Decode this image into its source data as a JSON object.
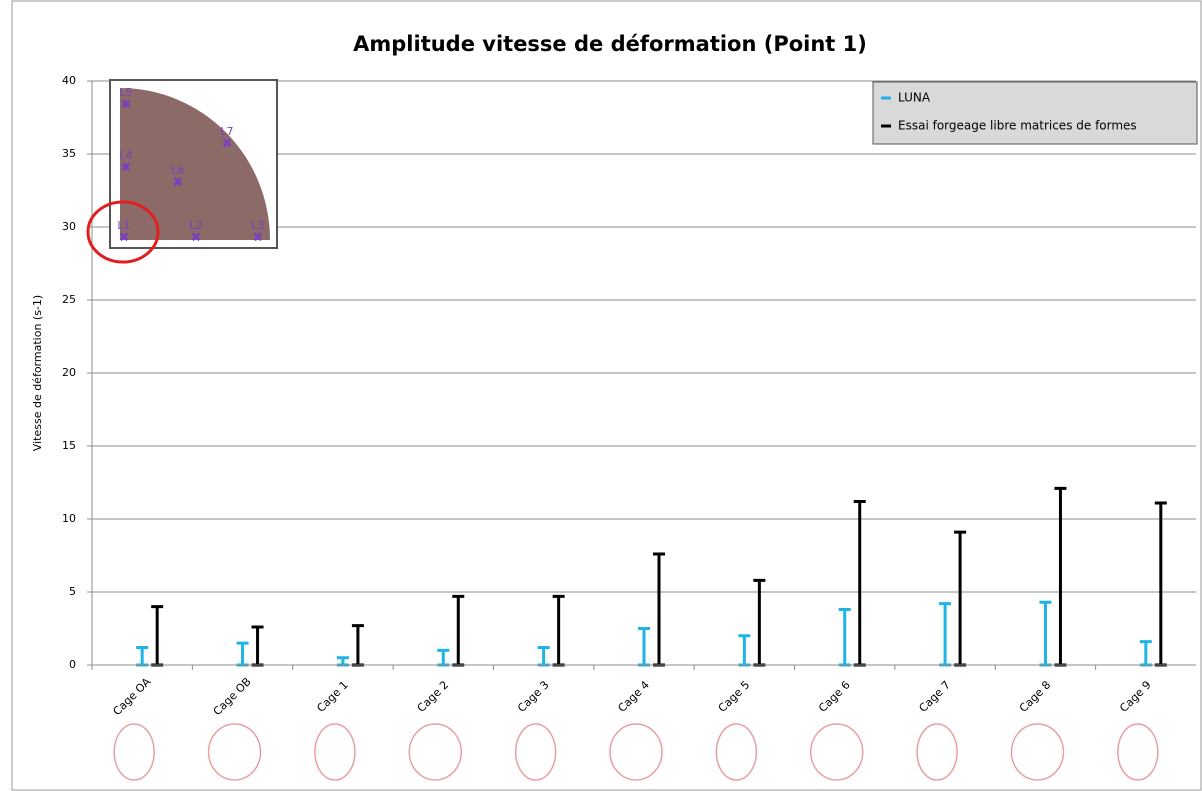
{
  "chart_data": {
    "type": "range-bar",
    "title": "Amplitude  vitesse de déformation (Point 1)",
    "y_label": "Vitesse de déformation (s-1)",
    "categories": [
      "Cage OA",
      "Cage OB",
      "Cage 1",
      "Cage 2",
      "Cage 3",
      "Cage 4",
      "Cage 5",
      "Cage 6",
      "Cage 7",
      "Cage 8",
      "Cage 9"
    ],
    "series": [
      {
        "name": "LUNA",
        "color": "#1fb4e6",
        "values": [
          1.2,
          1.5,
          0.5,
          1.0,
          1.2,
          2.5,
          2.0,
          3.8,
          4.2,
          4.3,
          1.6
        ]
      },
      {
        "name": "Essai forgeage libre matrices de formes",
        "color": "#000000",
        "values": [
          4.0,
          2.6,
          2.7,
          4.7,
          4.7,
          7.6,
          5.8,
          11.2,
          9.1,
          12.1,
          11.1
        ]
      }
    ],
    "ylim": [
      0,
      40
    ],
    "yticks": [
      0,
      5,
      10,
      15,
      20,
      25,
      30,
      35,
      40
    ],
    "grid": true,
    "legend": "top-right",
    "inset_points": [
      "L1",
      "L2",
      "L3",
      "L4",
      "L5",
      "L6",
      "L7"
    ]
  }
}
